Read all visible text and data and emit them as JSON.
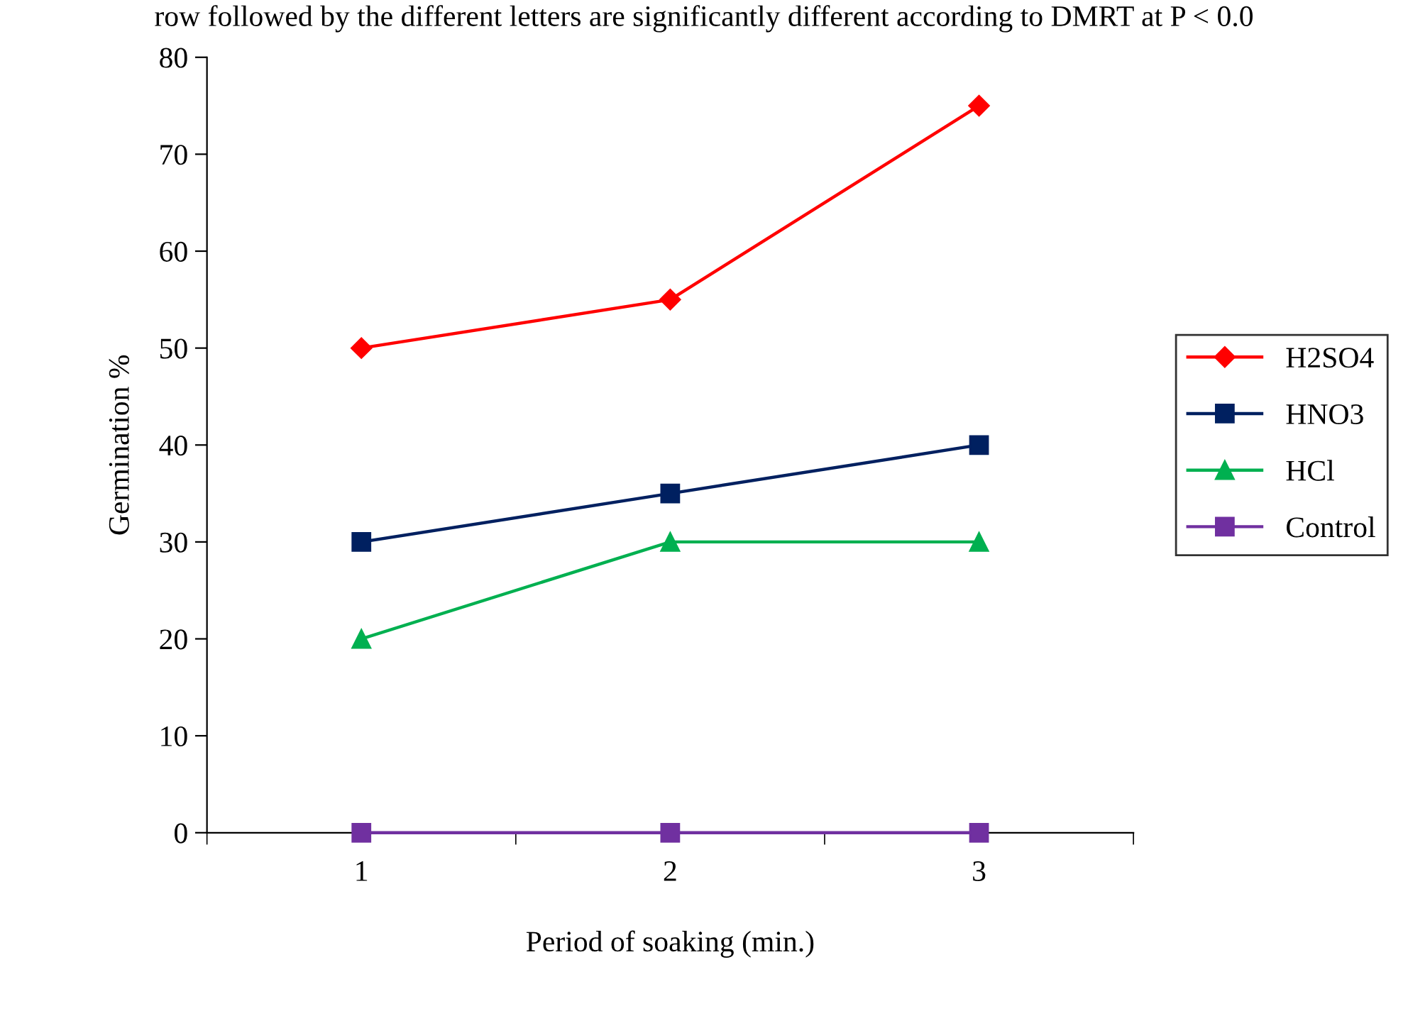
{
  "chart_data": {
    "type": "line",
    "xlabel": "Period of soaking (min.)",
    "ylabel": "Germination %",
    "annotations": [
      "row followed by the different letters are significantly different according to DMRT at P < 0.0"
    ],
    "categories": [
      "1",
      "2",
      "3"
    ],
    "series": [
      {
        "name": "H2SO4",
        "color": "#ff0000",
        "marker": "diamond",
        "values": [
          50,
          55,
          75
        ]
      },
      {
        "name": "HNO3",
        "color": "#002060",
        "marker": "square",
        "values": [
          30,
          35,
          40
        ]
      },
      {
        "name": "HCl",
        "color": "#00b050",
        "marker": "triangle",
        "values": [
          20,
          30,
          30
        ]
      },
      {
        "name": "Control",
        "color": "#7030a0",
        "marker": "square",
        "values": [
          0,
          0,
          0
        ]
      }
    ],
    "ylim": [
      0,
      80
    ],
    "yticks": [
      0,
      10,
      20,
      30,
      40,
      50,
      60,
      70,
      80
    ],
    "legend": "right",
    "grid": false
  }
}
